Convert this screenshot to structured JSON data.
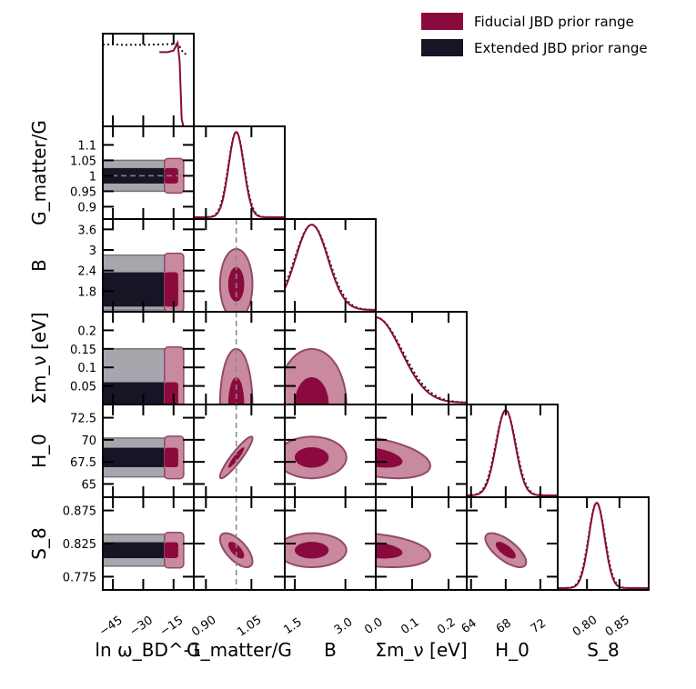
{
  "chart_data": {
    "type": "corner",
    "legend": {
      "placement": "top-right",
      "entries": [
        {
          "label": "Fiducial JBD prior range",
          "color": "#8B0A3E"
        },
        {
          "label": "Extended JBD prior range",
          "color": "#161525"
        }
      ]
    },
    "colors": {
      "fiducial": "#8B0A3E",
      "fiducial_light": "#C9899F",
      "extended": "#161525",
      "extended_light": "#A6A7AD",
      "reference": "#888888"
    },
    "parameters": [
      {
        "key": "lnw",
        "label": "ln ω_BD^-1",
        "range": [
          -50,
          -5
        ],
        "ticks": [
          -45,
          -30,
          -15
        ],
        "tick_labels": [
          "−45",
          "−30",
          "−15"
        ]
      },
      {
        "key": "G",
        "label": "G_matter/G",
        "range": [
          0.86,
          1.16
        ],
        "ticks": [
          0.9,
          1.05
        ],
        "tick_labels": [
          "0.90",
          "1.05"
        ]
      },
      {
        "key": "B",
        "label": "B",
        "range": [
          1.2,
          3.9
        ],
        "ticks": [
          1.5,
          3.0
        ],
        "tick_labels": [
          "1.5",
          "3.0"
        ]
      },
      {
        "key": "mnu",
        "label": "Σm_ν [eV]",
        "range": [
          0.0,
          0.25
        ],
        "ticks": [
          0.0,
          0.1,
          0.2
        ],
        "tick_labels": [
          "0.0",
          "0.1",
          "0.2"
        ]
      },
      {
        "key": "H0",
        "label": "H_0",
        "range": [
          63.5,
          74.0
        ],
        "ticks": [
          64,
          68,
          72
        ],
        "tick_labels": [
          "64",
          "68",
          "72"
        ]
      },
      {
        "key": "S8",
        "label": "S_8",
        "range": [
          0.755,
          0.895
        ],
        "ticks": [
          0.8,
          0.85
        ],
        "tick_labels": [
          "0.80",
          "0.85"
        ]
      }
    ],
    "y_axis_ticks": {
      "G": {
        "ticks": [
          1.1,
          1.05,
          1.0,
          0.95,
          0.9
        ],
        "labels": [
          "1.1",
          "1.05",
          "1",
          "0.95",
          "0.9"
        ]
      },
      "B": {
        "ticks": [
          3.6,
          3.0,
          2.4,
          1.8
        ],
        "labels": [
          "3.6",
          "3",
          "2.4",
          "1.8"
        ]
      },
      "mnu": {
        "ticks": [
          0.2,
          0.15,
          0.1,
          0.05
        ],
        "labels": [
          "0.2",
          "0.15",
          "0.1",
          "0.05"
        ]
      },
      "H0": {
        "ticks": [
          72.5,
          70,
          67.5,
          65
        ],
        "labels": [
          "72.5",
          "70",
          "67.5",
          "65"
        ]
      },
      "S8": {
        "ticks": [
          0.875,
          0.825,
          0.775
        ],
        "labels": [
          "0.875",
          "0.825",
          "0.775"
        ]
      }
    },
    "reference_lines": {
      "G": 1.0
    },
    "posteriors": {
      "G": {
        "mean": 1.0,
        "sigma": 0.025
      },
      "B": {
        "mean": 2.0,
        "sigma": 0.48
      },
      "mnu": {
        "mean": 0.0,
        "sigma": 0.07
      },
      "H0": {
        "mean": 68.0,
        "sigma": 1.1
      },
      "S8": {
        "mean": 0.815,
        "sigma": 0.012
      },
      "lnw": {
        "fiducial_range": [
          -22,
          -10
        ],
        "extended_range": [
          -50,
          -9
        ]
      }
    },
    "correlations": {
      "G_H0": 0.92,
      "G_S8": -0.65,
      "H0_S8": -0.7,
      "mnu_H0": -0.4,
      "mnu_S8": -0.3
    }
  }
}
